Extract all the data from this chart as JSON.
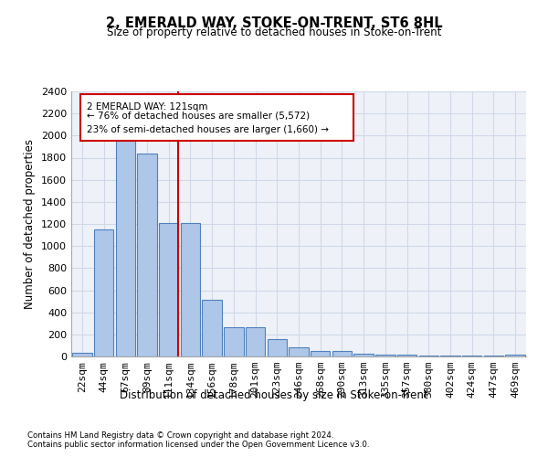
{
  "title": "2, EMERALD WAY, STOKE-ON-TRENT, ST6 8HL",
  "subtitle": "Size of property relative to detached houses in Stoke-on-Trent",
  "xlabel": "Distribution of detached houses by size in Stoke-on-Trent",
  "ylabel": "Number of detached properties",
  "bar_labels": [
    "22sqm",
    "44sqm",
    "67sqm",
    "89sqm",
    "111sqm",
    "134sqm",
    "156sqm",
    "178sqm",
    "201sqm",
    "223sqm",
    "246sqm",
    "268sqm",
    "290sqm",
    "313sqm",
    "335sqm",
    "357sqm",
    "380sqm",
    "402sqm",
    "424sqm",
    "447sqm",
    "469sqm"
  ],
  "bar_values": [
    30,
    1150,
    1960,
    1840,
    1210,
    1210,
    510,
    265,
    265,
    155,
    80,
    47,
    47,
    22,
    15,
    15,
    8,
    8,
    8,
    8,
    18
  ],
  "bar_color": "#aec6e8",
  "bar_edgecolor": "#4f81bd",
  "annotation_title": "2 EMERALD WAY: 121sqm",
  "annotation_line1": "← 76% of detached houses are smaller (5,572)",
  "annotation_line2": "23% of semi-detached houses are larger (1,660) →",
  "annotation_color": "#cc0000",
  "ylim": [
    0,
    2400
  ],
  "yticks": [
    0,
    200,
    400,
    600,
    800,
    1000,
    1200,
    1400,
    1600,
    1800,
    2000,
    2200,
    2400
  ],
  "footnote1": "Contains HM Land Registry data © Crown copyright and database right 2024.",
  "footnote2": "Contains public sector information licensed under the Open Government Licence v3.0.",
  "grid_color": "#d0d8e8",
  "bg_color": "#eef2f8",
  "fig_width": 6.0,
  "fig_height": 5.0,
  "dpi": 100
}
